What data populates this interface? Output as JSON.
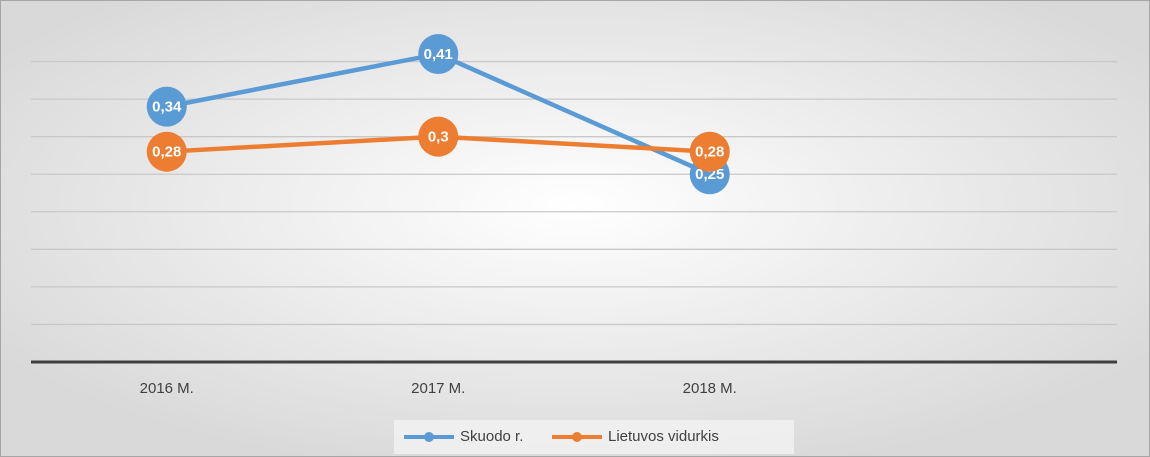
{
  "chart_data": {
    "type": "line",
    "categories": [
      "2016 M.",
      "2017 M.",
      "2018 M.",
      null
    ],
    "series": [
      {
        "name": "Skuodo r.",
        "color": "#5b9bd5",
        "values": [
          0.34,
          0.41,
          0.25,
          null
        ],
        "value_labels": [
          "0,34",
          "0,41",
          "0,25",
          null
        ]
      },
      {
        "name": "Lietuvos vidurkis",
        "color": "#ed7d31",
        "values": [
          0.28,
          0.3,
          0.28,
          null
        ],
        "value_labels": [
          "0,28",
          "0,3",
          "0,28",
          null
        ]
      }
    ],
    "ylim": [
      0,
      0.45
    ],
    "yticks": [
      0,
      0.05,
      0.1,
      0.15,
      0.2,
      0.25,
      0.3,
      0.35,
      0.4
    ],
    "grid": true,
    "legend": "bottom"
  }
}
